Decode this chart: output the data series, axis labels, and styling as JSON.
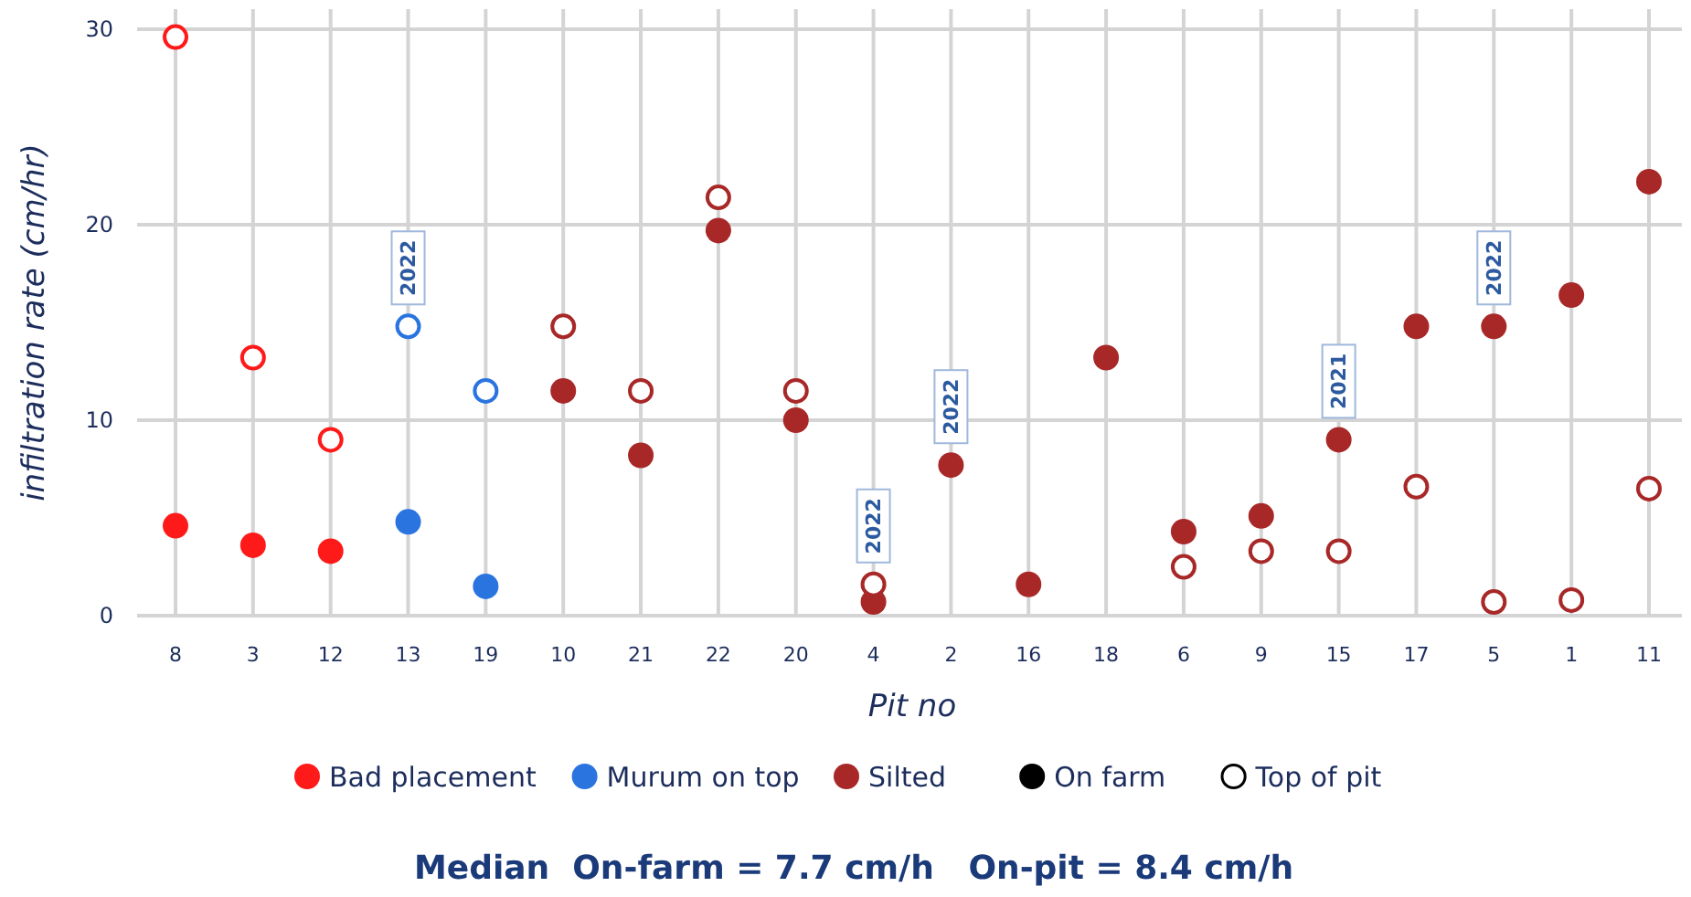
{
  "chart_data": {
    "type": "scatter",
    "xlabel": "Pit no",
    "ylabel": "infiltration rate (cm/hr)",
    "categories": [
      "8",
      "3",
      "12",
      "13",
      "19",
      "10",
      "21",
      "22",
      "20",
      "4",
      "2",
      "16",
      "18",
      "6",
      "9",
      "15",
      "17",
      "5",
      "1",
      "11"
    ],
    "ylim": [
      0,
      30
    ],
    "yticks": [
      0,
      10,
      20,
      30
    ],
    "grid": true,
    "legend": "bottom",
    "marker": "circle",
    "series": [
      {
        "name": "Bad placement",
        "color": "#ff1a1a",
        "values": [
          4.6,
          3.6,
          3.3,
          null,
          null,
          null,
          null,
          null,
          null,
          null,
          null,
          null,
          null,
          null,
          null,
          null,
          null,
          null,
          null,
          null
        ]
      },
      {
        "name": "Murum on top",
        "color": "#2a74e0",
        "values": [
          null,
          null,
          null,
          4.8,
          1.5,
          null,
          null,
          null,
          null,
          null,
          null,
          null,
          null,
          null,
          null,
          null,
          null,
          null,
          null,
          null
        ]
      },
      {
        "name": "Silted",
        "color": "#a82828",
        "values": [
          null,
          null,
          null,
          null,
          null,
          11.5,
          8.2,
          19.7,
          10,
          0.7,
          7.7,
          1.6,
          13.2,
          4.3,
          5.1,
          9,
          14.8,
          14.8,
          16.4,
          22.2
        ]
      },
      {
        "color": "#ff1a1a",
        "values": [
          29.6,
          13.2,
          9,
          null,
          null,
          null,
          null,
          null,
          null,
          null,
          null,
          null,
          null,
          null,
          null,
          null,
          null,
          null,
          null,
          null
        ]
      },
      {
        "color": "#2a74e0",
        "values": [
          null,
          null,
          null,
          14.8,
          11.5,
          null,
          null,
          null,
          null,
          null,
          null,
          null,
          null,
          null,
          null,
          null,
          null,
          null,
          null,
          null
        ]
      },
      {
        "color": "#a82828",
        "values": [
          null,
          null,
          null,
          null,
          null,
          14.8,
          11.5,
          21.4,
          11.5,
          1.6,
          null,
          null,
          null,
          2.5,
          3.3,
          3.3,
          6.6,
          0.7,
          0.8,
          6.5
        ]
      }
    ],
    "annotations": [
      {
        "text": "2022",
        "x": "13",
        "y": 14.8
      },
      {
        "text": "2022",
        "x": "4",
        "y": 1.6
      },
      {
        "text": "2022",
        "x": "2",
        "y": 7.7
      },
      {
        "text": "2021",
        "x": "15",
        "y": 9
      },
      {
        "text": "2022",
        "x": "5",
        "y": 14.8
      },
      "On farm",
      "Top of pit",
      "Median  On-farm = 7.7 cm/h   On-pit = 8.4 cm/h"
    ]
  }
}
